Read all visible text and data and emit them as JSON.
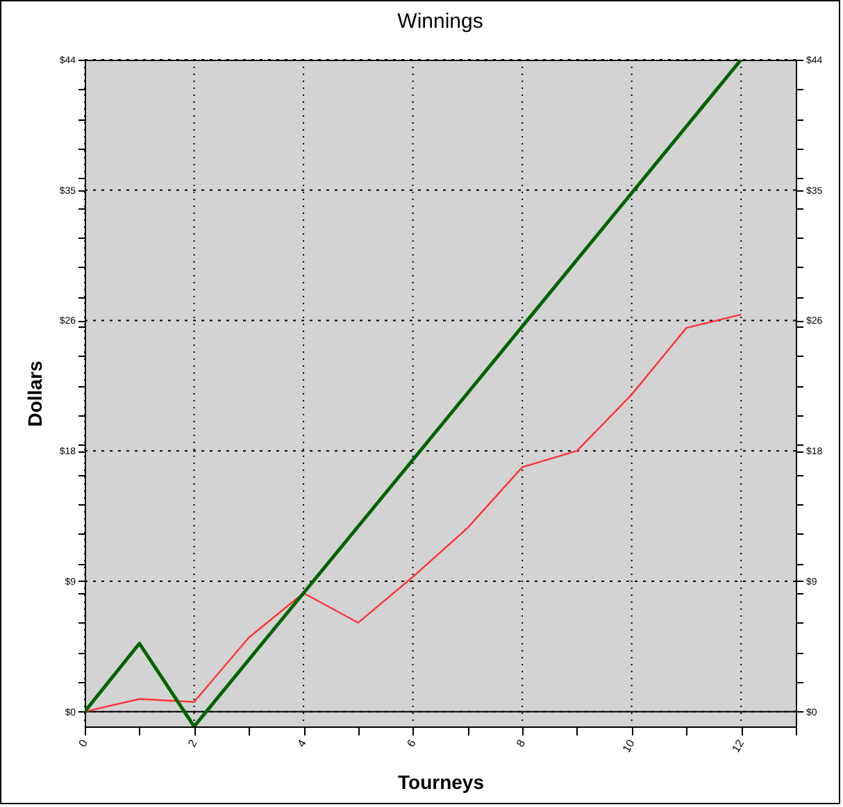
{
  "chart_data": {
    "type": "line",
    "title": "Winnings",
    "xlabel": "Tourneys",
    "ylabel": "Dollars",
    "x": [
      0,
      1,
      2,
      3,
      4,
      5,
      6,
      7,
      8,
      9,
      10,
      11,
      12
    ],
    "series": [
      {
        "color": "#ff3333",
        "values": [
          0,
          0.85,
          0.65,
          5.0,
          8.0,
          6.0,
          9.1,
          12.4,
          16.5,
          17.6,
          21.4,
          25.9,
          26.8
        ]
      },
      {
        "color": "#006400",
        "values": [
          0,
          4.6,
          -1,
          3.5,
          8,
          12.5,
          17,
          21.5,
          26,
          30.5,
          35,
          39.5,
          44
        ]
      }
    ],
    "xlim": [
      0,
      13
    ],
    "xticks": [
      0,
      {
        "value": 1,
        "label": null
      },
      2,
      {
        "value": 3,
        "label": null
      },
      4,
      {
        "value": 5,
        "label": null
      },
      6,
      {
        "value": 7,
        "label": null
      },
      8,
      {
        "value": 9,
        "label": null
      },
      10,
      {
        "value": 11,
        "label": null
      },
      12,
      {
        "value": 13,
        "label": null
      }
    ],
    "ylim": [
      -1,
      44
    ],
    "yticks": [
      {
        "value": 0,
        "label": "$0"
      },
      {
        "value": 2,
        "label": null
      },
      {
        "value": 4,
        "label": null
      },
      {
        "value": 6,
        "label": null
      },
      {
        "value": 8,
        "label": null
      },
      {
        "value": 8.8,
        "label": "$9"
      },
      {
        "value": 10,
        "label": null
      },
      {
        "value": 12,
        "label": null
      },
      {
        "value": 14,
        "label": null
      },
      {
        "value": 16,
        "label": null
      },
      {
        "value": 17.6,
        "label": "$18"
      },
      {
        "value": 18,
        "label": null
      },
      {
        "value": 20,
        "label": null
      },
      {
        "value": 22,
        "label": null
      },
      {
        "value": 24,
        "label": null
      },
      {
        "value": 26,
        "label": null
      },
      {
        "value": 26.4,
        "label": "$26"
      },
      {
        "value": 28,
        "label": null
      },
      {
        "value": 30,
        "label": null
      },
      {
        "value": 32,
        "label": null
      },
      {
        "value": 34,
        "label": null
      },
      {
        "value": 35.2,
        "label": "$35"
      },
      {
        "value": 36,
        "label": null
      },
      {
        "value": 38,
        "label": null
      },
      {
        "value": 40,
        "label": null
      },
      {
        "value": 42,
        "label": null
      },
      {
        "value": 44,
        "label": "$44"
      }
    ],
    "y2lim": [
      -1,
      44
    ],
    "y2ticks": [
      {
        "value": 0,
        "label": "$0"
      },
      {
        "value": 2,
        "label": null
      },
      {
        "value": 4,
        "label": null
      },
      {
        "value": 6,
        "label": null
      },
      {
        "value": 8,
        "label": null
      },
      {
        "value": 8.8,
        "label": "$9"
      },
      {
        "value": 10,
        "label": null
      },
      {
        "value": 12,
        "label": null
      },
      {
        "value": 14,
        "label": null
      },
      {
        "value": 16,
        "label": null
      },
      {
        "value": 17.6,
        "label": "$18"
      },
      {
        "value": 18,
        "label": null
      },
      {
        "value": 20,
        "label": null
      },
      {
        "value": 22,
        "label": null
      },
      {
        "value": 24,
        "label": null
      },
      {
        "value": 26,
        "label": null
      },
      {
        "value": 26.4,
        "label": "$26"
      },
      {
        "value": 28,
        "label": null
      },
      {
        "value": 30,
        "label": null
      },
      {
        "value": 32,
        "label": null
      },
      {
        "value": 34,
        "label": null
      },
      {
        "value": 35.2,
        "label": "$35"
      },
      {
        "value": 36,
        "label": null
      },
      {
        "value": 38,
        "label": null
      },
      {
        "value": 40,
        "label": null
      },
      {
        "value": 42,
        "label": null
      },
      {
        "value": 44,
        "label": "$44"
      }
    ],
    "ref_lines": [
      {
        "axis": "y",
        "value": 0,
        "color": "#000000",
        "line_style": "solid"
      }
    ],
    "grid": true,
    "marker": "none",
    "line_style": "solid"
  }
}
